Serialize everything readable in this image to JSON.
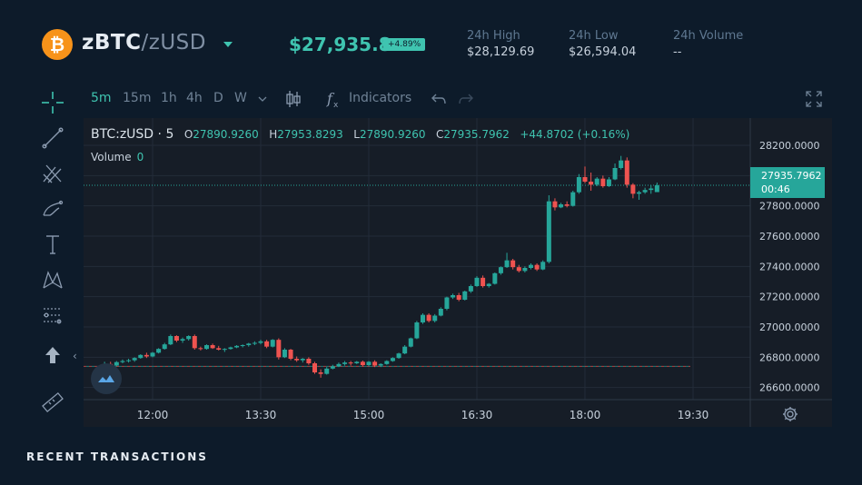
{
  "header": {
    "coin_symbol": "₿",
    "base": "zBTC",
    "separator": "/",
    "quote": "zUSD",
    "price": "$27,935.8",
    "change": "+4.89%",
    "stats": [
      {
        "label": "24h High",
        "value": "$28,129.69"
      },
      {
        "label": "24h Low",
        "value": "$26,594.04"
      },
      {
        "label": "24h Volume",
        "value": "--"
      }
    ]
  },
  "toolbar": {
    "timeframes": [
      {
        "label": "5m",
        "active": true
      },
      {
        "label": "15m",
        "active": false
      },
      {
        "label": "1h",
        "active": false
      },
      {
        "label": "4h",
        "active": false
      },
      {
        "label": "D",
        "active": false
      },
      {
        "label": "W",
        "active": false
      }
    ],
    "indicators_label": "Indicators"
  },
  "legend": {
    "symbol": "BTC:zUSD · 5",
    "o_key": "O",
    "o_val": "27890.9260",
    "h_key": "H",
    "h_val": "27953.8293",
    "l_key": "L",
    "l_val": "27890.9260",
    "c_key": "C",
    "c_val": "27935.7962",
    "change": "+44.8702 (+0.16%)",
    "volume_label": "Volume",
    "volume_value": "0"
  },
  "last_price": {
    "value": "27935.7962",
    "countdown": "00:46"
  },
  "section_title": "RECENT TRANSACTIONS",
  "colors": {
    "up": "#26a69a",
    "down": "#ef5350",
    "accent": "#3fc4b0"
  },
  "chart_data": {
    "type": "candlestick",
    "x_ticks": [
      "12:00",
      "13:30",
      "15:00",
      "16:30",
      "18:00",
      "19:30"
    ],
    "y_ticks": [
      "28200.0000",
      "28000.0000",
      "27800.0000",
      "27600.0000",
      "27400.0000",
      "27200.0000",
      "27000.0000",
      "26800.0000",
      "26600.0000"
    ],
    "ylim": [
      26520,
      28380
    ],
    "last_price": 27935.7962,
    "reference_price": 26740,
    "candles": [
      {
        "t": "11:20",
        "o": 26750,
        "h": 26770,
        "l": 26740,
        "c": 26755
      },
      {
        "t": "11:25",
        "o": 26755,
        "h": 26770,
        "l": 26740,
        "c": 26745
      },
      {
        "t": "11:30",
        "o": 26745,
        "h": 26775,
        "l": 26740,
        "c": 26768
      },
      {
        "t": "11:35",
        "o": 26768,
        "h": 26785,
        "l": 26760,
        "c": 26775
      },
      {
        "t": "11:40",
        "o": 26775,
        "h": 26790,
        "l": 26765,
        "c": 26780
      },
      {
        "t": "11:45",
        "o": 26780,
        "h": 26800,
        "l": 26770,
        "c": 26795
      },
      {
        "t": "11:50",
        "o": 26795,
        "h": 26820,
        "l": 26790,
        "c": 26815
      },
      {
        "t": "11:55",
        "o": 26815,
        "h": 26830,
        "l": 26795,
        "c": 26805
      },
      {
        "t": "12:00",
        "o": 26805,
        "h": 26835,
        "l": 26800,
        "c": 26830
      },
      {
        "t": "12:05",
        "o": 26830,
        "h": 26860,
        "l": 26825,
        "c": 26855
      },
      {
        "t": "12:10",
        "o": 26855,
        "h": 26895,
        "l": 26850,
        "c": 26885
      },
      {
        "t": "12:15",
        "o": 26885,
        "h": 26950,
        "l": 26880,
        "c": 26940
      },
      {
        "t": "12:20",
        "o": 26940,
        "h": 26945,
        "l": 26900,
        "c": 26910
      },
      {
        "t": "12:25",
        "o": 26910,
        "h": 26930,
        "l": 26895,
        "c": 26920
      },
      {
        "t": "12:30",
        "o": 26920,
        "h": 26945,
        "l": 26910,
        "c": 26940
      },
      {
        "t": "12:35",
        "o": 26940,
        "h": 26950,
        "l": 26850,
        "c": 26860
      },
      {
        "t": "12:40",
        "o": 26860,
        "h": 26870,
        "l": 26845,
        "c": 26855
      },
      {
        "t": "12:45",
        "o": 26855,
        "h": 26885,
        "l": 26850,
        "c": 26880
      },
      {
        "t": "12:50",
        "o": 26880,
        "h": 26890,
        "l": 26855,
        "c": 26860
      },
      {
        "t": "12:55",
        "o": 26860,
        "h": 26875,
        "l": 26845,
        "c": 26850
      },
      {
        "t": "13:00",
        "o": 26850,
        "h": 26860,
        "l": 26835,
        "c": 26855
      },
      {
        "t": "13:05",
        "o": 26855,
        "h": 26870,
        "l": 26850,
        "c": 26865
      },
      {
        "t": "13:10",
        "o": 26865,
        "h": 26880,
        "l": 26860,
        "c": 26875
      },
      {
        "t": "13:15",
        "o": 26875,
        "h": 26885,
        "l": 26865,
        "c": 26880
      },
      {
        "t": "13:20",
        "o": 26880,
        "h": 26895,
        "l": 26870,
        "c": 26890
      },
      {
        "t": "13:25",
        "o": 26890,
        "h": 26905,
        "l": 26880,
        "c": 26895
      },
      {
        "t": "13:30",
        "o": 26895,
        "h": 26915,
        "l": 26885,
        "c": 26905
      },
      {
        "t": "13:35",
        "o": 26905,
        "h": 26915,
        "l": 26860,
        "c": 26870
      },
      {
        "t": "13:40",
        "o": 26870,
        "h": 26920,
        "l": 26865,
        "c": 26915
      },
      {
        "t": "13:45",
        "o": 26915,
        "h": 26925,
        "l": 26785,
        "c": 26800
      },
      {
        "t": "13:50",
        "o": 26800,
        "h": 26860,
        "l": 26795,
        "c": 26850
      },
      {
        "t": "13:55",
        "o": 26850,
        "h": 26855,
        "l": 26780,
        "c": 26790
      },
      {
        "t": "14:00",
        "o": 26790,
        "h": 26805,
        "l": 26770,
        "c": 26780
      },
      {
        "t": "14:05",
        "o": 26780,
        "h": 26795,
        "l": 26765,
        "c": 26790
      },
      {
        "t": "14:10",
        "o": 26790,
        "h": 26800,
        "l": 26750,
        "c": 26760
      },
      {
        "t": "14:15",
        "o": 26760,
        "h": 26770,
        "l": 26690,
        "c": 26700
      },
      {
        "t": "14:20",
        "o": 26700,
        "h": 26720,
        "l": 26665,
        "c": 26690
      },
      {
        "t": "14:25",
        "o": 26690,
        "h": 26735,
        "l": 26685,
        "c": 26725
      },
      {
        "t": "14:30",
        "o": 26725,
        "h": 26750,
        "l": 26720,
        "c": 26740
      },
      {
        "t": "14:35",
        "o": 26740,
        "h": 26765,
        "l": 26735,
        "c": 26755
      },
      {
        "t": "14:40",
        "o": 26755,
        "h": 26775,
        "l": 26745,
        "c": 26765
      },
      {
        "t": "14:45",
        "o": 26765,
        "h": 26775,
        "l": 26745,
        "c": 26760
      },
      {
        "t": "14:50",
        "o": 26760,
        "h": 26775,
        "l": 26755,
        "c": 26770
      },
      {
        "t": "14:55",
        "o": 26770,
        "h": 26778,
        "l": 26740,
        "c": 26748
      },
      {
        "t": "15:00",
        "o": 26748,
        "h": 26775,
        "l": 26740,
        "c": 26770
      },
      {
        "t": "15:05",
        "o": 26770,
        "h": 26780,
        "l": 26735,
        "c": 26745
      },
      {
        "t": "15:10",
        "o": 26745,
        "h": 26760,
        "l": 26735,
        "c": 26755
      },
      {
        "t": "15:15",
        "o": 26755,
        "h": 26780,
        "l": 26750,
        "c": 26775
      },
      {
        "t": "15:20",
        "o": 26775,
        "h": 26800,
        "l": 26770,
        "c": 26795
      },
      {
        "t": "15:25",
        "o": 26795,
        "h": 26830,
        "l": 26790,
        "c": 26825
      },
      {
        "t": "15:30",
        "o": 26825,
        "h": 26880,
        "l": 26820,
        "c": 26870
      },
      {
        "t": "15:35",
        "o": 26870,
        "h": 26930,
        "l": 26865,
        "c": 26925
      },
      {
        "t": "15:40",
        "o": 26925,
        "h": 27040,
        "l": 26920,
        "c": 27030
      },
      {
        "t": "15:45",
        "o": 27030,
        "h": 27090,
        "l": 27020,
        "c": 27080
      },
      {
        "t": "15:50",
        "o": 27080,
        "h": 27090,
        "l": 27030,
        "c": 27040
      },
      {
        "t": "15:55",
        "o": 27040,
        "h": 27085,
        "l": 27030,
        "c": 27075
      },
      {
        "t": "16:00",
        "o": 27075,
        "h": 27130,
        "l": 27070,
        "c": 27120
      },
      {
        "t": "16:05",
        "o": 27120,
        "h": 27200,
        "l": 27110,
        "c": 27195
      },
      {
        "t": "16:10",
        "o": 27195,
        "h": 27220,
        "l": 27185,
        "c": 27210
      },
      {
        "t": "16:15",
        "o": 27210,
        "h": 27225,
        "l": 27170,
        "c": 27180
      },
      {
        "t": "16:20",
        "o": 27180,
        "h": 27240,
        "l": 27175,
        "c": 27235
      },
      {
        "t": "16:25",
        "o": 27235,
        "h": 27280,
        "l": 27225,
        "c": 27270
      },
      {
        "t": "16:30",
        "o": 27270,
        "h": 27335,
        "l": 27265,
        "c": 27325
      },
      {
        "t": "16:35",
        "o": 27325,
        "h": 27340,
        "l": 27260,
        "c": 27270
      },
      {
        "t": "16:40",
        "o": 27270,
        "h": 27290,
        "l": 27260,
        "c": 27285
      },
      {
        "t": "16:45",
        "o": 27285,
        "h": 27360,
        "l": 27280,
        "c": 27355
      },
      {
        "t": "16:50",
        "o": 27355,
        "h": 27400,
        "l": 27345,
        "c": 27395
      },
      {
        "t": "16:55",
        "o": 27395,
        "h": 27490,
        "l": 27390,
        "c": 27440
      },
      {
        "t": "17:00",
        "o": 27440,
        "h": 27450,
        "l": 27380,
        "c": 27395
      },
      {
        "t": "17:05",
        "o": 27395,
        "h": 27410,
        "l": 27360,
        "c": 27370
      },
      {
        "t": "17:10",
        "o": 27370,
        "h": 27400,
        "l": 27360,
        "c": 27390
      },
      {
        "t": "17:15",
        "o": 27390,
        "h": 27420,
        "l": 27380,
        "c": 27410
      },
      {
        "t": "17:20",
        "o": 27410,
        "h": 27420,
        "l": 27370,
        "c": 27380
      },
      {
        "t": "17:25",
        "o": 27380,
        "h": 27440,
        "l": 27375,
        "c": 27430
      },
      {
        "t": "17:30",
        "o": 27430,
        "h": 27870,
        "l": 27420,
        "c": 27830
      },
      {
        "t": "17:35",
        "o": 27830,
        "h": 27850,
        "l": 27770,
        "c": 27790
      },
      {
        "t": "17:40",
        "o": 27790,
        "h": 27820,
        "l": 27785,
        "c": 27810
      },
      {
        "t": "17:45",
        "o": 27810,
        "h": 27830,
        "l": 27790,
        "c": 27800
      },
      {
        "t": "17:50",
        "o": 27800,
        "h": 27900,
        "l": 27795,
        "c": 27890
      },
      {
        "t": "17:55",
        "o": 27890,
        "h": 28010,
        "l": 27880,
        "c": 27990
      },
      {
        "t": "18:00",
        "o": 27990,
        "h": 28060,
        "l": 27950,
        "c": 27960
      },
      {
        "t": "18:05",
        "o": 27960,
        "h": 28020,
        "l": 27900,
        "c": 27940
      },
      {
        "t": "18:10",
        "o": 27940,
        "h": 27990,
        "l": 27930,
        "c": 27980
      },
      {
        "t": "18:15",
        "o": 27980,
        "h": 28000,
        "l": 27920,
        "c": 27930
      },
      {
        "t": "18:20",
        "o": 27930,
        "h": 27990,
        "l": 27925,
        "c": 27975
      },
      {
        "t": "18:25",
        "o": 27975,
        "h": 28080,
        "l": 27970,
        "c": 28050
      },
      {
        "t": "18:30",
        "o": 28050,
        "h": 28130,
        "l": 28040,
        "c": 28100
      },
      {
        "t": "18:35",
        "o": 28100,
        "h": 28120,
        "l": 27920,
        "c": 27940
      },
      {
        "t": "18:40",
        "o": 27940,
        "h": 27950,
        "l": 27850,
        "c": 27880
      },
      {
        "t": "18:45",
        "o": 27880,
        "h": 27900,
        "l": 27840,
        "c": 27890
      },
      {
        "t": "18:50",
        "o": 27890,
        "h": 27920,
        "l": 27880,
        "c": 27905
      },
      {
        "t": "18:55",
        "o": 27905,
        "h": 27935,
        "l": 27880,
        "c": 27915
      },
      {
        "t": "19:00",
        "o": 27890.926,
        "h": 27953.8293,
        "l": 27890.926,
        "c": 27935.7962
      }
    ]
  }
}
